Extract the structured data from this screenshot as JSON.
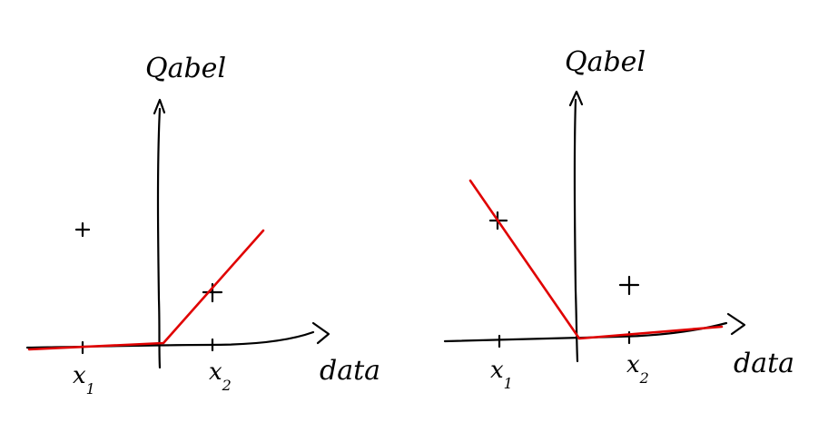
{
  "panels": [
    {
      "y_label": "Qabel",
      "x_label": "data",
      "tick_labels": [
        {
          "main": "x",
          "sub": "1"
        },
        {
          "main": "x",
          "sub": "2"
        }
      ],
      "point_marker": "+"
    },
    {
      "y_label": "Qabel",
      "x_label": "data",
      "tick_labels": [
        {
          "main": "x",
          "sub": "1"
        },
        {
          "main": "x",
          "sub": "2"
        }
      ],
      "point_marker": "+"
    }
  ],
  "colors": {
    "ink": "#000000",
    "fit_line": "#e00000"
  }
}
